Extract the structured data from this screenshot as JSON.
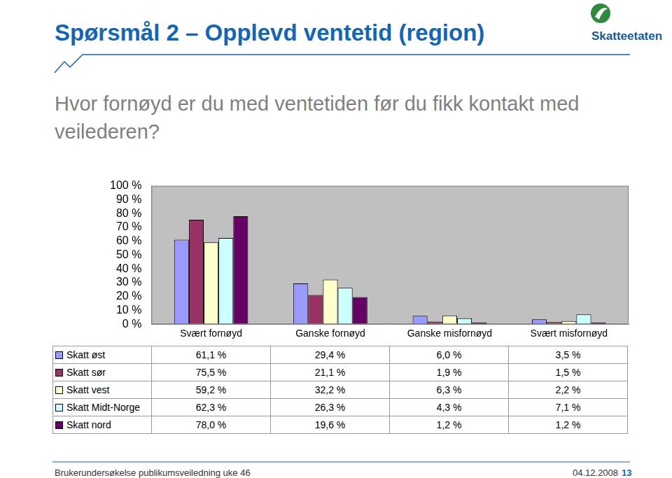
{
  "chart_data": {
    "type": "bar",
    "title": "Spørsmål 2 – Opplevd ventetid (region)",
    "subtitle": "Hvor fornøyd er du med ventetiden før du fikk kontakt med veilederen?",
    "categories": [
      "Svært fornøyd",
      "Ganske fornøyd",
      "Ganske misfornøyd",
      "Svært misfornøyd"
    ],
    "series": [
      {
        "name": "Skatt øst",
        "color": "#9999ff",
        "values": [
          61.1,
          29.4,
          6.0,
          3.5
        ],
        "value_labels": [
          "61,1 %",
          "29,4 %",
          "6,0 %",
          "3,5 %"
        ]
      },
      {
        "name": "Skatt sør",
        "color": "#993366",
        "values": [
          75.5,
          21.1,
          1.9,
          1.5
        ],
        "value_labels": [
          "75,5 %",
          "21,1 %",
          "1,9 %",
          "1,5 %"
        ]
      },
      {
        "name": "Skatt vest",
        "color": "#ffffcc",
        "values": [
          59.2,
          32.2,
          6.3,
          2.2
        ],
        "value_labels": [
          "59,2 %",
          "32,2 %",
          "6,3 %",
          "2,2 %"
        ]
      },
      {
        "name": "Skatt Midt-Norge",
        "color": "#ccffff",
        "values": [
          62.3,
          26.3,
          4.3,
          7.1
        ],
        "value_labels": [
          "62,3 %",
          "26,3 %",
          "4,3 %",
          "7,1 %"
        ]
      },
      {
        "name": "Skatt nord",
        "color": "#660066",
        "values": [
          78.0,
          19.6,
          1.2,
          1.2
        ],
        "value_labels": [
          "78,0 %",
          "19,6 %",
          "1,2 %",
          "1,2 %"
        ]
      }
    ],
    "ylim": [
      0,
      100
    ],
    "yticks": [
      {
        "value": 0,
        "label": "0 %"
      },
      {
        "value": 10,
        "label": "10 %"
      },
      {
        "value": 20,
        "label": "20 %"
      },
      {
        "value": 30,
        "label": "30 %"
      },
      {
        "value": 40,
        "label": "40 %"
      },
      {
        "value": 50,
        "label": "50 %"
      },
      {
        "value": 60,
        "label": "60 %"
      },
      {
        "value": 70,
        "label": "70 %"
      },
      {
        "value": 80,
        "label": "80 %"
      },
      {
        "value": 90,
        "label": "90 %"
      },
      {
        "value": 100,
        "label": "100 %"
      }
    ],
    "grid": false
  },
  "logo": "Skatteetaten",
  "footer": "Brukerundersøkelse publikumsveiledning uke 46",
  "date": "04.12.2008",
  "page_number": "13"
}
